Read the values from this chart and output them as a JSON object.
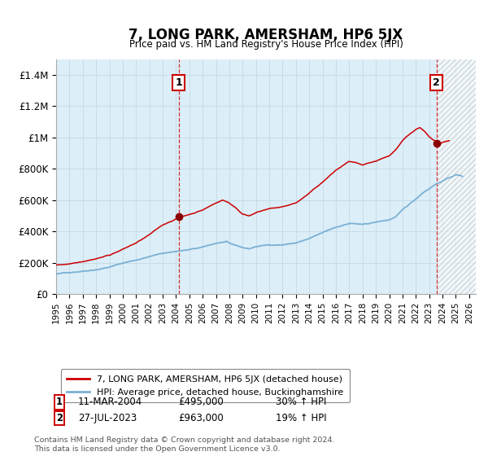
{
  "title": "7, LONG PARK, AMERSHAM, HP6 5JX",
  "subtitle": "Price paid vs. HM Land Registry's House Price Index (HPI)",
  "ylim": [
    0,
    1500000
  ],
  "xlim_start": 1995.0,
  "xlim_end": 2026.5,
  "hpi_color": "#7ab0d4",
  "hpi_fill_color": "#dceef8",
  "price_color": "#cc0000",
  "t1_x": 2004.21,
  "t1_y": 495000,
  "t2_x": 2023.54,
  "t2_y": 963000,
  "transaction1_date": "11-MAR-2004",
  "transaction1_price": "£495,000",
  "transaction1_hpi": "30% ↑ HPI",
  "transaction2_date": "27-JUL-2023",
  "transaction2_price": "£963,000",
  "transaction2_hpi": "19% ↑ HPI",
  "legend1": "7, LONG PARK, AMERSHAM, HP6 5JX (detached house)",
  "legend2": "HPI: Average price, detached house, Buckinghamshire",
  "footnote": "Contains HM Land Registry data © Crown copyright and database right 2024.\nThis data is licensed under the Open Government Licence v3.0.",
  "background_color": "#ffffff",
  "plot_bg_color": "#dceef8",
  "grid_color": "#c8dce8",
  "yticks": [
    0,
    200000,
    400000,
    600000,
    800000,
    1000000,
    1200000,
    1400000
  ],
  "ytick_labels": [
    "£0",
    "£200K",
    "£400K",
    "£600K",
    "£800K",
    "£1M",
    "£1.2M",
    "£1.4M"
  ]
}
